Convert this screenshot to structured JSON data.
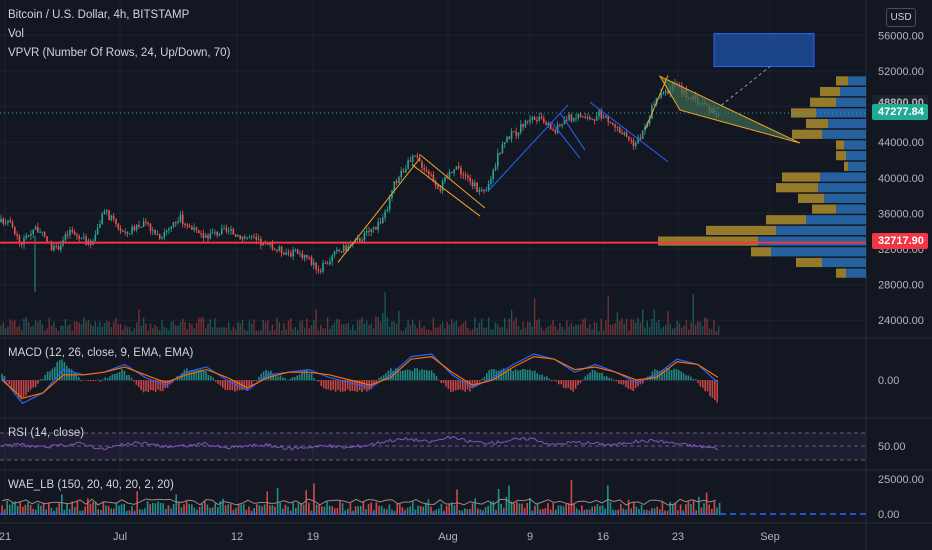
{
  "header": {
    "symbol_title": "Bitcoin / U.S. Dollar, 4h, BITSTAMP",
    "indicator_vol": "Vol",
    "indicator_vpvr": "VPVR (Number Of Rows, 24, Up/Down, 70)",
    "currency_button": "USD"
  },
  "price_tags": {
    "last_price": "47277.84",
    "hidden_price": "48800.00",
    "level": "32717.90",
    "last_price_color": "#22ab94",
    "level_color": "#f23645"
  },
  "panes": {
    "macd_title": "MACD (12, 26, close, 9, EMA, EMA)",
    "rsi_title": "RSI (14, close)",
    "wae_title": "WAE_LB (150, 20, 40, 20, 2, 20)"
  },
  "colors": {
    "background": "#131722",
    "bull": "#26a69a",
    "bear": "#ef5350",
    "macd_line": "#2962ff",
    "signal_line": "#ff6d00",
    "rsi_line": "#7e57c2",
    "vpvr_up": "#2a6fb5",
    "vpvr_down": "#b8932e",
    "pattern_orange": "#f5a623",
    "pattern_blue": "#2962ff",
    "target_box": "#2962ff"
  },
  "chart_data": [
    {
      "type": "line",
      "name": "price",
      "x_ticks": [
        "21",
        "Jul",
        "12",
        "19",
        "Aug",
        "9",
        "16",
        "23",
        "Sep"
      ],
      "y_ticks": [
        "56000.00",
        "52000.00",
        "48000.00",
        "44000.00",
        "40000.00",
        "36000.00",
        "32000.00",
        "28000.00",
        "24000.00"
      ],
      "ylim": [
        22000,
        57500
      ],
      "grid": true,
      "close_path_points": [
        [
          0,
          35000
        ],
        [
          10,
          35500
        ],
        [
          20,
          32500
        ],
        [
          35,
          34500
        ],
        [
          55,
          31800
        ],
        [
          70,
          34000
        ],
        [
          90,
          32500
        ],
        [
          105,
          36200
        ],
        [
          125,
          33600
        ],
        [
          140,
          35000
        ],
        [
          160,
          33500
        ],
        [
          180,
          35500
        ],
        [
          200,
          33400
        ],
        [
          225,
          34000
        ],
        [
          250,
          33200
        ],
        [
          270,
          32200
        ],
        [
          290,
          31600
        ],
        [
          305,
          31300
        ],
        [
          320,
          29600
        ],
        [
          335,
          31500
        ],
        [
          355,
          32700
        ],
        [
          375,
          34500
        ],
        [
          385,
          35800
        ],
        [
          395,
          39500
        ],
        [
          405,
          41200
        ],
        [
          415,
          42300
        ],
        [
          430,
          40500
        ],
        [
          440,
          38800
        ],
        [
          455,
          41500
        ],
        [
          470,
          39500
        ],
        [
          485,
          38000
        ],
        [
          495,
          41500
        ],
        [
          505,
          44500
        ],
        [
          515,
          45000
        ],
        [
          530,
          46800
        ],
        [
          545,
          46200
        ],
        [
          555,
          45200
        ],
        [
          565,
          46600
        ],
        [
          580,
          47000
        ],
        [
          592,
          46500
        ],
        [
          600,
          47200
        ],
        [
          612,
          46000
        ],
        [
          625,
          44800
        ],
        [
          635,
          43800
        ],
        [
          645,
          45500
        ],
        [
          655,
          48800
        ],
        [
          665,
          49500
        ],
        [
          675,
          50500
        ],
        [
          685,
          49500
        ],
        [
          700,
          48500
        ],
        [
          710,
          47800
        ],
        [
          720,
          47300
        ]
      ],
      "annotations": [
        {
          "kind": "level_line",
          "price": 32717.9,
          "label": "32717.90"
        },
        {
          "kind": "dotted_line",
          "price": 47277.84,
          "label": "47277.84"
        },
        {
          "kind": "target_box",
          "from_price": 52500,
          "to_price": 56200
        },
        {
          "kind": "flag",
          "color": "orange",
          "points": [
            [
              420,
              42600
            ],
            [
              485,
              36600
            ]
          ]
        },
        {
          "kind": "flag",
          "color": "blue",
          "points": [
            [
              560,
              47300
            ],
            [
              585,
              43100
            ]
          ]
        },
        {
          "kind": "wedge",
          "color": "orange",
          "points": [
            [
              665,
              51300
            ],
            [
              712,
              49000
            ]
          ]
        }
      ],
      "volume_ylim": [
        0,
        1
      ],
      "vpvr_rows": [
        {
          "price": 50800,
          "up": 18,
          "down": 12
        },
        {
          "price": 49600,
          "up": 26,
          "down": 20
        },
        {
          "price": 48400,
          "up": 30,
          "down": 26
        },
        {
          "price": 47200,
          "up": 50,
          "down": 25
        },
        {
          "price": 46000,
          "up": 38,
          "down": 22
        },
        {
          "price": 44800,
          "up": 44,
          "down": 30
        },
        {
          "price": 43600,
          "up": 22,
          "down": 8
        },
        {
          "price": 42400,
          "up": 20,
          "down": 10
        },
        {
          "price": 41200,
          "up": 18,
          "down": 4
        },
        {
          "price": 40000,
          "up": 46,
          "down": 38
        },
        {
          "price": 38800,
          "up": 48,
          "down": 42
        },
        {
          "price": 37600,
          "up": 42,
          "down": 26
        },
        {
          "price": 36400,
          "up": 30,
          "down": 24
        },
        {
          "price": 35200,
          "up": 60,
          "down": 40
        },
        {
          "price": 34000,
          "up": 90,
          "down": 70
        },
        {
          "price": 32800,
          "up": 108,
          "down": 100
        },
        {
          "price": 31600,
          "up": 95,
          "down": 20
        },
        {
          "price": 30400,
          "up": 44,
          "down": 26
        },
        {
          "price": 29200,
          "up": 20,
          "down": 10
        }
      ]
    },
    {
      "type": "line",
      "name": "MACD",
      "y_ticks": [
        "0.00"
      ],
      "series": [
        {
          "name": "MACD",
          "values": [
            0.1,
            -0.9,
            -0.5,
            0.4,
            0.2,
            0.3,
            0.6,
            0.1,
            -0.2,
            0.3,
            0.5,
            0.0,
            -0.4,
            0.2,
            0.3,
            0.4,
            0.1,
            -0.1,
            -0.3,
            0.2,
            0.9,
            1.0,
            0.2,
            -0.3,
            0.1,
            0.6,
            1.0,
            0.8,
            0.3,
            0.6,
            0.3,
            -0.1,
            0.2,
            0.8,
            0.6,
            -0.1
          ]
        },
        {
          "name": "Signal",
          "values": [
            0.0,
            -0.7,
            -0.5,
            0.2,
            0.2,
            0.3,
            0.5,
            0.2,
            -0.1,
            0.2,
            0.4,
            0.1,
            -0.3,
            0.1,
            0.3,
            0.3,
            0.2,
            0.0,
            -0.2,
            0.1,
            0.8,
            0.9,
            0.3,
            -0.2,
            0.0,
            0.5,
            0.9,
            0.8,
            0.4,
            0.5,
            0.3,
            0.0,
            0.1,
            0.7,
            0.6,
            0.1
          ]
        }
      ]
    },
    {
      "type": "line",
      "name": "RSI",
      "y_ticks": [
        "50.00"
      ],
      "ylim": [
        25,
        75
      ],
      "values": [
        48,
        53,
        47,
        51,
        55,
        44,
        52,
        56,
        49,
        50,
        54,
        46,
        50,
        52,
        45,
        48,
        50,
        47,
        52,
        60,
        63,
        57,
        66,
        58,
        55,
        61,
        64,
        52,
        57,
        55,
        52,
        58,
        60,
        55,
        50,
        46
      ]
    },
    {
      "type": "bar",
      "name": "WAE",
      "y_ticks": [
        "25000.00",
        "0.00"
      ],
      "ylim": [
        0,
        28000
      ]
    }
  ]
}
